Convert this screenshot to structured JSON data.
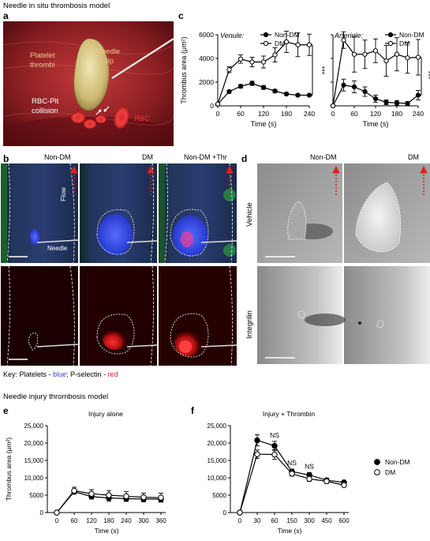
{
  "sections": {
    "top_title": "Needle in situ thrombosis model",
    "bottom_title": "Needle injury thrombosis model"
  },
  "panels": {
    "a": {
      "letter": "a",
      "labels": {
        "platelet": "Platelet\nthrombi",
        "needle": "Needle\ntip",
        "collision": "RBC-Plt\ncollision",
        "rbc": "RBC"
      }
    },
    "b": {
      "letter": "b",
      "columns": [
        "Non-DM",
        "DM",
        "Non-DM +Thr"
      ],
      "flow": "Flow",
      "needle": "Needle"
    },
    "d": {
      "letter": "d",
      "columns": [
        "Non-DM",
        "DM"
      ],
      "rows": [
        "Vehicle",
        "Integrilin"
      ]
    },
    "key": {
      "prefix": "Key: Platelets - ",
      "blue": "blue",
      "mid": "; P-selectin - ",
      "red": "red"
    }
  },
  "chart_data": [
    {
      "id": "c-venule",
      "panel": "c",
      "type": "line",
      "title": "Venule:",
      "xlabel": "Time (s)",
      "ylabel": "Thrombus area (μm²)",
      "x": [
        0,
        30,
        60,
        90,
        120,
        150,
        180,
        210,
        240
      ],
      "xticks": [
        0,
        60,
        120,
        180,
        240
      ],
      "ylim": [
        0,
        6000
      ],
      "yticks": [
        0,
        2000,
        4000,
        6000
      ],
      "ytick_labels": [
        "0",
        "2000",
        "4000",
        "6000"
      ],
      "series": [
        {
          "name": "Non-DM",
          "marker": "filled",
          "values": [
            150,
            1200,
            1650,
            1900,
            1550,
            1250,
            1000,
            900,
            900
          ],
          "errors": [
            50,
            120,
            150,
            180,
            160,
            130,
            100,
            90,
            90
          ]
        },
        {
          "name": "DM",
          "marker": "open",
          "values": [
            150,
            3050,
            3950,
            3700,
            3700,
            4300,
            5400,
            5150,
            5150
          ],
          "errors": [
            50,
            250,
            350,
            400,
            500,
            600,
            900,
            1000,
            900
          ]
        }
      ],
      "annotation": "***",
      "legend": "top-right"
    },
    {
      "id": "c-arteriole",
      "panel": "c",
      "type": "line",
      "title": "Arteriole:",
      "xlabel": "Time (s)",
      "ylabel": "",
      "x": [
        0,
        30,
        60,
        90,
        120,
        150,
        180,
        210,
        240
      ],
      "xticks": [
        0,
        60,
        120,
        180,
        240
      ],
      "ylim": [
        0,
        6000
      ],
      "yticks": [
        0,
        2000,
        4000,
        6000
      ],
      "ytick_labels": [
        "",
        "",
        "",
        ""
      ],
      "series": [
        {
          "name": "Non-DM",
          "marker": "filled",
          "values": [
            0,
            1750,
            1600,
            1200,
            600,
            300,
            250,
            200,
            900
          ],
          "errors": [
            0,
            500,
            500,
            400,
            300,
            200,
            200,
            150,
            400
          ]
        },
        {
          "name": "DM",
          "marker": "open",
          "values": [
            0,
            5550,
            4350,
            4350,
            4650,
            3800,
            4350,
            4050,
            4100
          ],
          "errors": [
            0,
            700,
            1500,
            1200,
            1000,
            1300,
            1400,
            1300,
            1500
          ]
        }
      ],
      "annotation": "***",
      "legend": "top-right"
    },
    {
      "id": "e",
      "panel": "e",
      "type": "line",
      "title": "Injury alone",
      "xlabel": "Time (s)",
      "ylabel": "Thrombus area (μm²)",
      "x": [
        0,
        60,
        120,
        180,
        240,
        300,
        360
      ],
      "xticks": [
        0,
        60,
        120,
        180,
        240,
        300,
        360
      ],
      "ylim": [
        0,
        25000
      ],
      "yticks": [
        0,
        5000,
        10000,
        15000,
        20000,
        25000
      ],
      "ytick_labels": [
        "0",
        "5000",
        "10,000",
        "15,000",
        "20,000",
        "25,000"
      ],
      "series": [
        {
          "name": "Non-DM",
          "marker": "filled",
          "values": [
            0,
            6000,
            4600,
            4200,
            4000,
            3900,
            3900
          ],
          "errors": [
            0,
            600,
            700,
            900,
            800,
            800,
            700
          ]
        },
        {
          "name": "DM",
          "marker": "open",
          "values": [
            0,
            6300,
            5400,
            5000,
            4700,
            4400,
            4300
          ],
          "errors": [
            0,
            1000,
            1200,
            1300,
            1300,
            1200,
            1300
          ]
        }
      ]
    },
    {
      "id": "f",
      "panel": "f",
      "type": "line",
      "title": "Injury + Thrombin",
      "xlabel": "Time (s)",
      "ylabel": "",
      "x": [
        "0",
        "30",
        "60",
        "150",
        "300",
        "450",
        "600"
      ],
      "xticks": [
        "0",
        "30",
        "60",
        "150",
        "300",
        "450",
        "600"
      ],
      "ylim": [
        0,
        25000
      ],
      "yticks": [
        0,
        5000,
        10000,
        15000,
        20000,
        25000
      ],
      "ytick_labels": [
        "0",
        "5000",
        "10,000",
        "15,000",
        "20,000",
        "25,000"
      ],
      "series": [
        {
          "name": "Non-DM",
          "marker": "filled",
          "values": [
            0,
            20800,
            19200,
            11800,
            10800,
            9300,
            8700
          ],
          "errors": [
            0,
            1600,
            1300,
            700,
            700,
            600,
            400
          ]
        },
        {
          "name": "DM",
          "marker": "open",
          "values": [
            0,
            16800,
            16700,
            11200,
            9700,
            9000,
            7900
          ],
          "errors": [
            0,
            1200,
            1400,
            700,
            700,
            600,
            500
          ]
        }
      ],
      "annotations": [
        {
          "at": "60",
          "text": "NS"
        },
        {
          "at": "150",
          "text": "NS"
        },
        {
          "at": "300",
          "text": "NS"
        }
      ],
      "legend": "right"
    }
  ],
  "colors": {
    "accent_blue": "#2b3ee0",
    "accent_red": "#e02020",
    "vessel_red": "#8a1e22",
    "thrombus_yellow": "#d9c985"
  }
}
